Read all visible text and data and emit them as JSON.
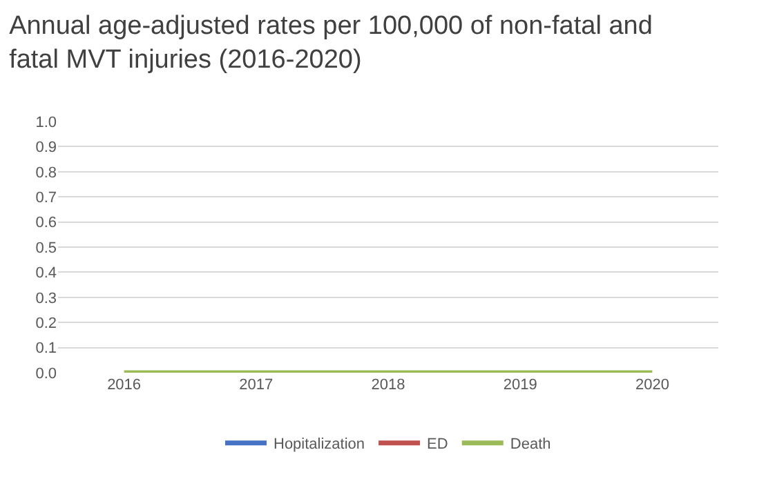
{
  "chart_data": {
    "type": "line",
    "title": "Annual age-adjusted rates per 100,000 of non-fatal and fatal MVT injuries (2016-2020)",
    "categories": [
      "2016",
      "2017",
      "2018",
      "2019",
      "2020"
    ],
    "series": [
      {
        "name": "Hopitalization",
        "color": "#4472c4",
        "values": [
          null,
          null,
          null,
          null,
          null
        ]
      },
      {
        "name": "ED",
        "color": "#c0504d",
        "values": [
          null,
          null,
          null,
          null,
          null
        ]
      },
      {
        "name": "Death",
        "color": "#9bbb59",
        "values": [
          0,
          0,
          0,
          0,
          0
        ]
      }
    ],
    "ylim": [
      0,
      1
    ],
    "yticks": [
      {
        "value": 0,
        "label": "0.0"
      },
      0.1,
      0.2,
      0.3,
      0.4,
      0.5,
      0.6,
      0.7,
      0.8,
      0.9,
      {
        "value": 1,
        "label": "1.0"
      }
    ],
    "grid": "y",
    "legend": "bottom",
    "marker": "none",
    "line_style": "solid"
  }
}
